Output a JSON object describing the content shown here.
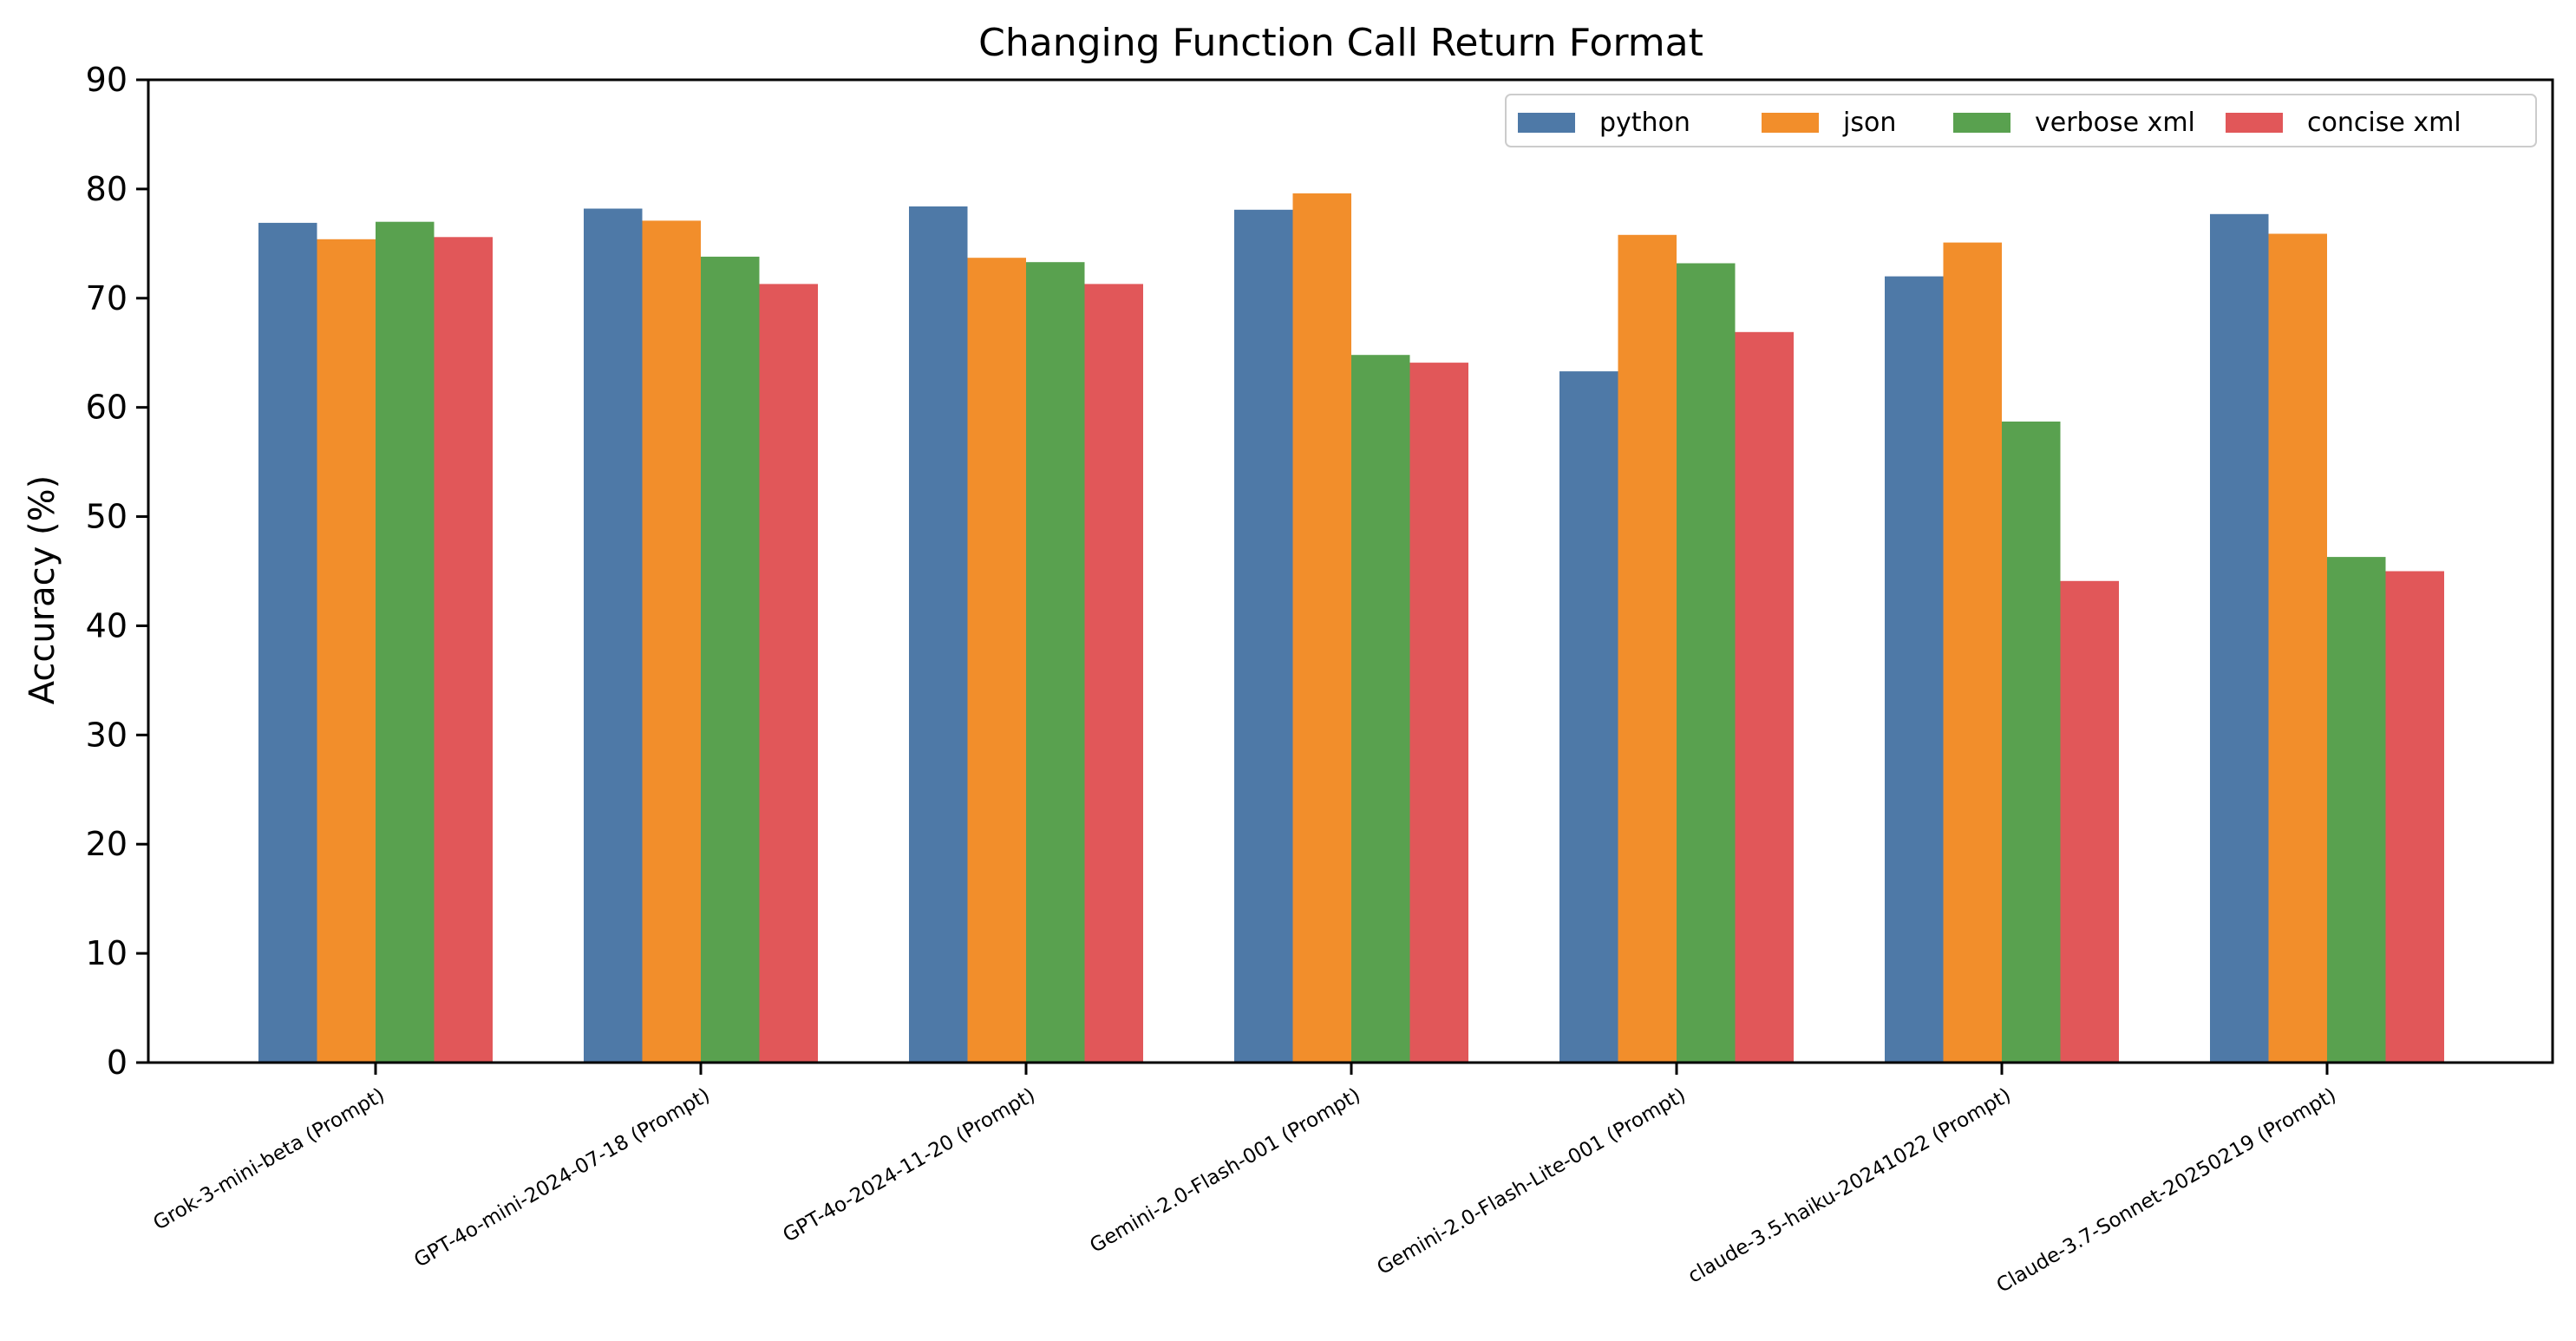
{
  "chart_data": {
    "type": "bar",
    "title": "Changing Function Call Return Format",
    "xlabel": "",
    "ylabel": "Accuracy (%)",
    "ylim": [
      0,
      90
    ],
    "yticks": [
      "0",
      "10",
      "20",
      "30",
      "40",
      "50",
      "60",
      "70",
      "80",
      "90"
    ],
    "grid": false,
    "legend_position": "top-right",
    "categories": [
      "Grok-3-mini-beta (Prompt)",
      "GPT-4o-mini-2024-07-18 (Prompt)",
      "GPT-4o-2024-11-20 (Prompt)",
      "Gemini-2.0-Flash-001 (Prompt)",
      "Gemini-2.0-Flash-Lite-001 (Prompt)",
      "claude-3.5-haiku-20241022 (Prompt)",
      "Claude-3.7-Sonnet-20250219 (Prompt)"
    ],
    "series": [
      {
        "name": "python",
        "color": "#4e79a7",
        "values": [
          76.9,
          78.2,
          78.4,
          78.1,
          63.3,
          72.0,
          77.7
        ]
      },
      {
        "name": "json",
        "color": "#f28e2b",
        "values": [
          75.4,
          77.1,
          73.7,
          79.6,
          75.8,
          75.1,
          75.9
        ]
      },
      {
        "name": "verbose xml",
        "color": "#59a14f",
        "values": [
          77.0,
          73.8,
          73.3,
          64.8,
          73.2,
          58.7,
          46.3
        ]
      },
      {
        "name": "concise xml",
        "color": "#e15759",
        "values": [
          75.6,
          71.3,
          71.3,
          64.1,
          66.9,
          44.1,
          45.0
        ]
      }
    ]
  }
}
